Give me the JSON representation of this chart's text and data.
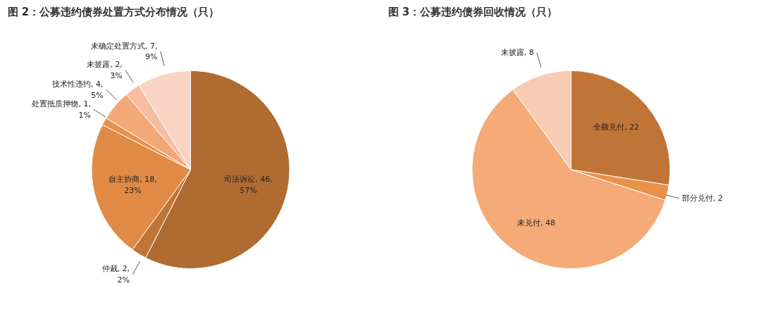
{
  "chart_data": [
    {
      "type": "pie",
      "title": "图 2：公募违约债券处置方式分布情况（只）",
      "categories": [
        "司法诉讼",
        "仲裁",
        "自主协商",
        "处置抵质押物",
        "技术性违约",
        "未披露",
        "未确定处置方式"
      ],
      "values": [
        46,
        2,
        18,
        1,
        4,
        2,
        7
      ],
      "value_labels": [
        "46, 57%",
        "2, 2%",
        "18, 23%",
        "1, 1%",
        "4, 5%",
        "2, 3%",
        "7, 9%"
      ],
      "colors": [
        "#b06b31",
        "#c07536",
        "#e08a45",
        "#e8914a",
        "#f2a877",
        "#f6bda0",
        "#f9d3c3"
      ]
    },
    {
      "type": "pie",
      "title": "图 3：公募违约债券回收情况（只）",
      "categories": [
        "全额兑付",
        "部分兑付",
        "未兑付",
        "未披露"
      ],
      "values": [
        22,
        2,
        48,
        8
      ],
      "value_labels": [
        "22",
        "2",
        "48",
        "8"
      ],
      "colors": [
        "#c07536",
        "#e8914a",
        "#f5aa78",
        "#f8cbb4"
      ]
    }
  ]
}
